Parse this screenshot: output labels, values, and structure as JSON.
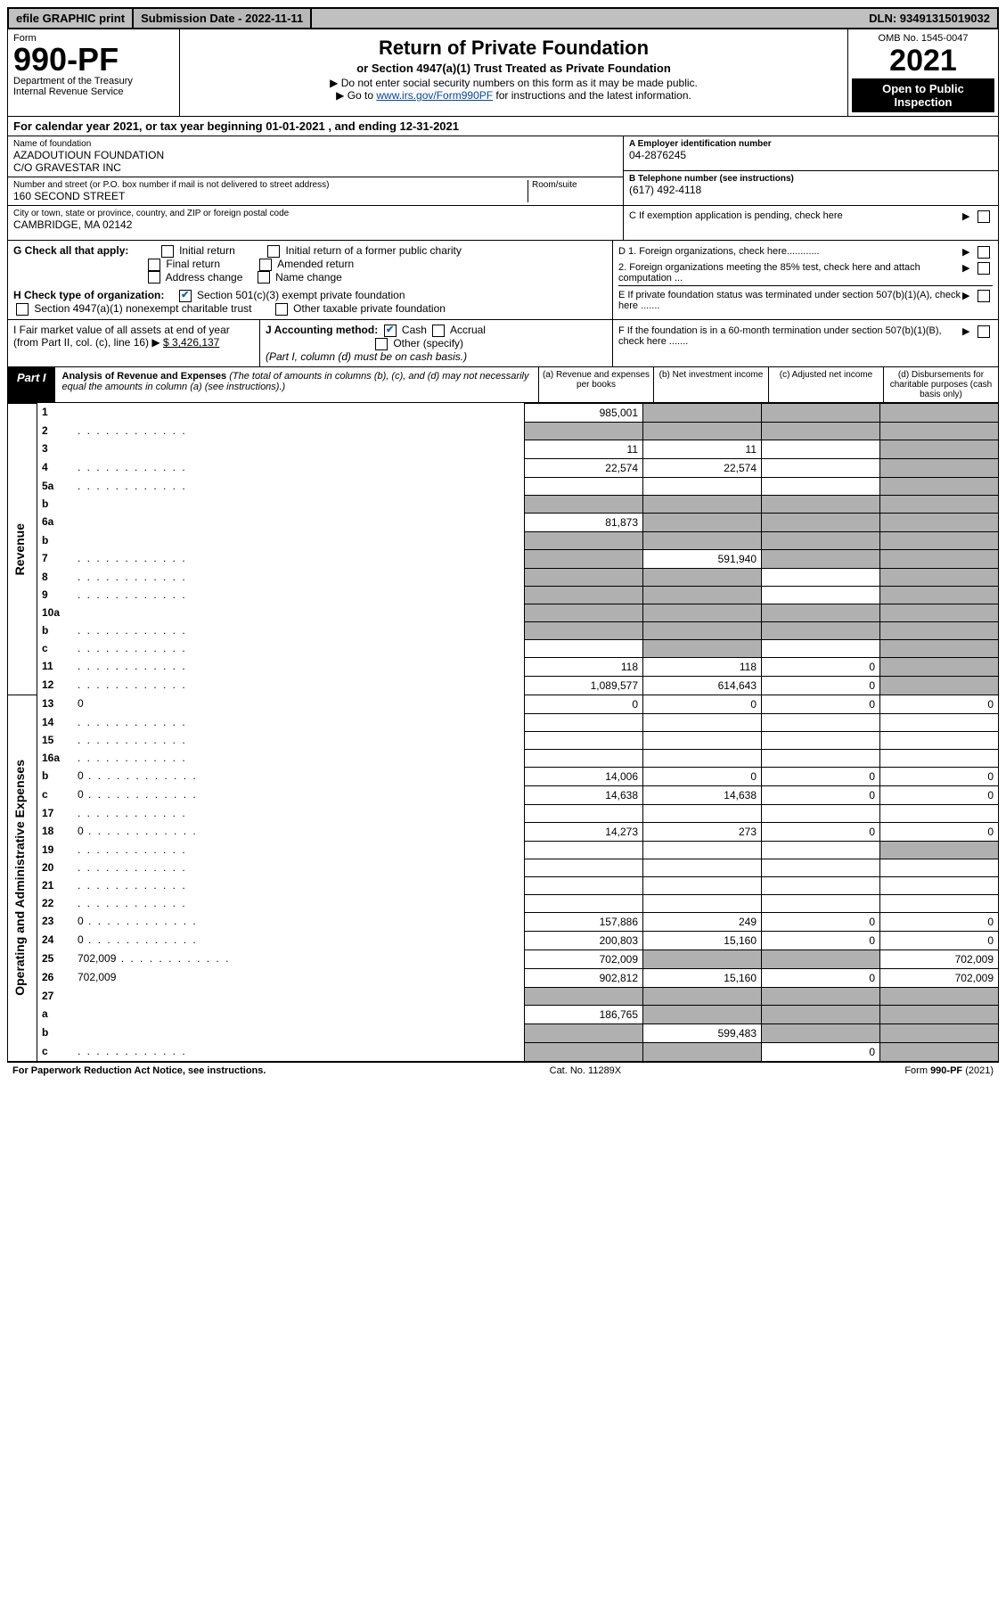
{
  "topbar": {
    "efile": "efile GRAPHIC print",
    "submission": "Submission Date - 2022-11-11",
    "dln": "DLN: 93491315019032"
  },
  "header": {
    "form": "Form",
    "form_number": "990-PF",
    "dept": "Department of the Treasury",
    "irs": "Internal Revenue Service",
    "title": "Return of Private Foundation",
    "subtitle": "or Section 4947(a)(1) Trust Treated as Private Foundation",
    "note1": "▶ Do not enter social security numbers on this form as it may be made public.",
    "note2_pre": "▶ Go to ",
    "note2_link": "www.irs.gov/Form990PF",
    "note2_post": " for instructions and the latest information.",
    "omb": "OMB No. 1545-0047",
    "year": "2021",
    "open": "Open to Public Inspection"
  },
  "calyear": "For calendar year 2021, or tax year beginning 01-01-2021              , and ending 12-31-2021",
  "entity": {
    "name_label": "Name of foundation",
    "name1": "AZADOUTIOUN FOUNDATION",
    "name2": "C/O GRAVESTAR INC",
    "addr_label": "Number and street (or P.O. box number if mail is not delivered to street address)",
    "addr": "160 SECOND STREET",
    "room_label": "Room/suite",
    "city_label": "City or town, state or province, country, and ZIP or foreign postal code",
    "city": "CAMBRIDGE, MA  02142",
    "ein_label": "A Employer identification number",
    "ein": "04-2876245",
    "phone_label": "B Telephone number (see instructions)",
    "phone": "(617) 492-4118",
    "c_label": "C If exemption application is pending, check here"
  },
  "g": {
    "label": "G Check all that apply:",
    "o1": "Initial return",
    "o2": "Final return",
    "o3": "Address change",
    "o4": "Initial return of a former public charity",
    "o5": "Amended return",
    "o6": "Name change"
  },
  "h": {
    "label": "H Check type of organization:",
    "o1": "Section 501(c)(3) exempt private foundation",
    "o2": "Section 4947(a)(1) nonexempt charitable trust",
    "o3": "Other taxable private foundation"
  },
  "d": {
    "d1": "D 1. Foreign organizations, check here............",
    "d2": "2. Foreign organizations meeting the 85% test, check here and attach computation ...",
    "e": "E  If private foundation status was terminated under section 507(b)(1)(A), check here .......",
    "f": "F  If the foundation is in a 60-month termination under section 507(b)(1)(B), check here ......."
  },
  "i": {
    "label": "I Fair market value of all assets at end of year (from Part II, col. (c), line 16) ▶",
    "amount": "$  3,426,137"
  },
  "j": {
    "label": "J Accounting method:",
    "cash": "Cash",
    "accrual": "Accrual",
    "other": "Other (specify)",
    "note": "(Part I, column (d) must be on cash basis.)"
  },
  "part1": {
    "label": "Part I",
    "title": "Analysis of Revenue and Expenses",
    "desc": " (The total of amounts in columns (b), (c), and (d) may not necessarily equal the amounts in column (a) (see instructions).)",
    "col_a": "(a)   Revenue and expenses per books",
    "col_b": "(b)   Net investment income",
    "col_c": "(c)   Adjusted net income",
    "col_d": "(d)   Disbursements for charitable purposes (cash basis only)"
  },
  "sides": {
    "revenue": "Revenue",
    "op_admin": "Operating and Administrative Expenses"
  },
  "rows": [
    {
      "n": "1",
      "d": "",
      "a": "985,001",
      "b": "",
      "c": "",
      "bs": true,
      "cs": true,
      "ds": true
    },
    {
      "n": "2",
      "d": "",
      "dots": true,
      "a": "",
      "b": "",
      "c": "",
      "as": true,
      "bs": true,
      "cs": true,
      "ds": true
    },
    {
      "n": "3",
      "d": "",
      "a": "11",
      "b": "11",
      "c": "",
      "ds": true
    },
    {
      "n": "4",
      "d": "",
      "dots": true,
      "a": "22,574",
      "b": "22,574",
      "c": "",
      "ds": true
    },
    {
      "n": "5a",
      "d": "",
      "dots": true,
      "a": "",
      "b": "",
      "c": "",
      "ds": true
    },
    {
      "n": "b",
      "d": "",
      "a": "",
      "b": "",
      "c": "",
      "as": true,
      "bs": true,
      "cs": true,
      "ds": true
    },
    {
      "n": "6a",
      "d": "",
      "a": "81,873",
      "b": "",
      "c": "",
      "bs": true,
      "cs": true,
      "ds": true
    },
    {
      "n": "b",
      "d": "",
      "a": "",
      "b": "",
      "c": "",
      "as": true,
      "bs": true,
      "cs": true,
      "ds": true
    },
    {
      "n": "7",
      "d": "",
      "dots": true,
      "a": "",
      "b": "591,940",
      "c": "",
      "as": true,
      "cs": true,
      "ds": true
    },
    {
      "n": "8",
      "d": "",
      "dots": true,
      "a": "",
      "b": "",
      "c": "",
      "as": true,
      "bs": true,
      "ds": true
    },
    {
      "n": "9",
      "d": "",
      "dots": true,
      "a": "",
      "b": "",
      "c": "",
      "as": true,
      "bs": true,
      "ds": true
    },
    {
      "n": "10a",
      "d": "",
      "a": "",
      "b": "",
      "c": "",
      "as": true,
      "bs": true,
      "cs": true,
      "ds": true
    },
    {
      "n": "b",
      "d": "",
      "dots": true,
      "a": "",
      "b": "",
      "c": "",
      "as": true,
      "bs": true,
      "cs": true,
      "ds": true
    },
    {
      "n": "c",
      "d": "",
      "dots": true,
      "a": "",
      "b": "",
      "c": "",
      "bs": true,
      "ds": true
    },
    {
      "n": "11",
      "d": "",
      "dots": true,
      "a": "118",
      "b": "118",
      "c": "0",
      "ds": true
    },
    {
      "n": "12",
      "d": "",
      "dots": true,
      "a": "1,089,577",
      "b": "614,643",
      "c": "0",
      "ds": true
    },
    {
      "n": "13",
      "d": "0",
      "a": "0",
      "b": "0",
      "c": "0"
    },
    {
      "n": "14",
      "d": "",
      "dots": true,
      "a": "",
      "b": "",
      "c": ""
    },
    {
      "n": "15",
      "d": "",
      "dots": true,
      "a": "",
      "b": "",
      "c": ""
    },
    {
      "n": "16a",
      "d": "",
      "dots": true,
      "a": "",
      "b": "",
      "c": ""
    },
    {
      "n": "b",
      "d": "0",
      "dots": true,
      "a": "14,006",
      "b": "0",
      "c": "0"
    },
    {
      "n": "c",
      "d": "0",
      "dots": true,
      "a": "14,638",
      "b": "14,638",
      "c": "0"
    },
    {
      "n": "17",
      "d": "",
      "dots": true,
      "a": "",
      "b": "",
      "c": ""
    },
    {
      "n": "18",
      "d": "0",
      "dots": true,
      "a": "14,273",
      "b": "273",
      "c": "0"
    },
    {
      "n": "19",
      "d": "",
      "dots": true,
      "a": "",
      "b": "",
      "c": "",
      "ds": true
    },
    {
      "n": "20",
      "d": "",
      "dots": true,
      "a": "",
      "b": "",
      "c": ""
    },
    {
      "n": "21",
      "d": "",
      "dots": true,
      "a": "",
      "b": "",
      "c": ""
    },
    {
      "n": "22",
      "d": "",
      "dots": true,
      "a": "",
      "b": "",
      "c": ""
    },
    {
      "n": "23",
      "d": "0",
      "dots": true,
      "a": "157,886",
      "b": "249",
      "c": "0"
    },
    {
      "n": "24",
      "d": "0",
      "dots": true,
      "a": "200,803",
      "b": "15,160",
      "c": "0"
    },
    {
      "n": "25",
      "d": "702,009",
      "dots": true,
      "a": "702,009",
      "b": "",
      "c": "",
      "bs": true,
      "cs": true
    },
    {
      "n": "26",
      "d": "702,009",
      "a": "902,812",
      "b": "15,160",
      "c": "0"
    },
    {
      "n": "27",
      "d": "",
      "a": "",
      "b": "",
      "c": "",
      "as": true,
      "bs": true,
      "cs": true,
      "ds": true
    },
    {
      "n": "a",
      "d": "",
      "a": "186,765",
      "b": "",
      "c": "",
      "bs": true,
      "cs": true,
      "ds": true
    },
    {
      "n": "b",
      "d": "",
      "a": "",
      "b": "599,483",
      "c": "",
      "as": true,
      "cs": true,
      "ds": true
    },
    {
      "n": "c",
      "d": "",
      "dots": true,
      "a": "",
      "b": "",
      "c": "0",
      "as": true,
      "bs": true,
      "ds": true
    }
  ],
  "footer": {
    "left": "For Paperwork Reduction Act Notice, see instructions.",
    "mid": "Cat. No. 11289X",
    "right": "Form 990-PF (2021)"
  },
  "colors": {
    "link": "#0645ad",
    "shade": "#b0b0b0",
    "topbar": "#c0c0c0",
    "check": "#1a5fb4"
  }
}
